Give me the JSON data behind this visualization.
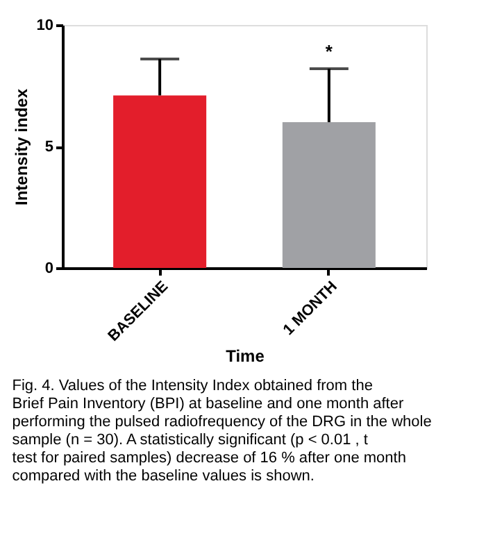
{
  "chart_data": {
    "type": "bar",
    "xlabel": "Time",
    "ylabel": "Intensity index",
    "categories": [
      "BASELINE",
      "1 MONTH"
    ],
    "values": [
      7.1,
      6.0
    ],
    "colors": [
      "#e31e2b",
      "#a0a1a5"
    ],
    "errors": [
      [
        7.1,
        8.6
      ],
      [
        6.0,
        8.2
      ]
    ],
    "ylim": [
      0,
      10
    ],
    "yticks": [
      0,
      5,
      10
    ],
    "grid": false,
    "annotations": [
      {
        "text": "*",
        "x": "1 MONTH",
        "y": 8.2
      },
      "Fig. 4. Values of the Intensity Index obtained from the Brief Pain Inventory (BPI) at baseline and one month after performing the pulsed radiofrequency of the DRG in the whole sample (n = 30). A statistically significant (p < 0.01 , t test for paired samples) decrease of 16 % after one month compared with the baseline values is shown."
    ]
  }
}
